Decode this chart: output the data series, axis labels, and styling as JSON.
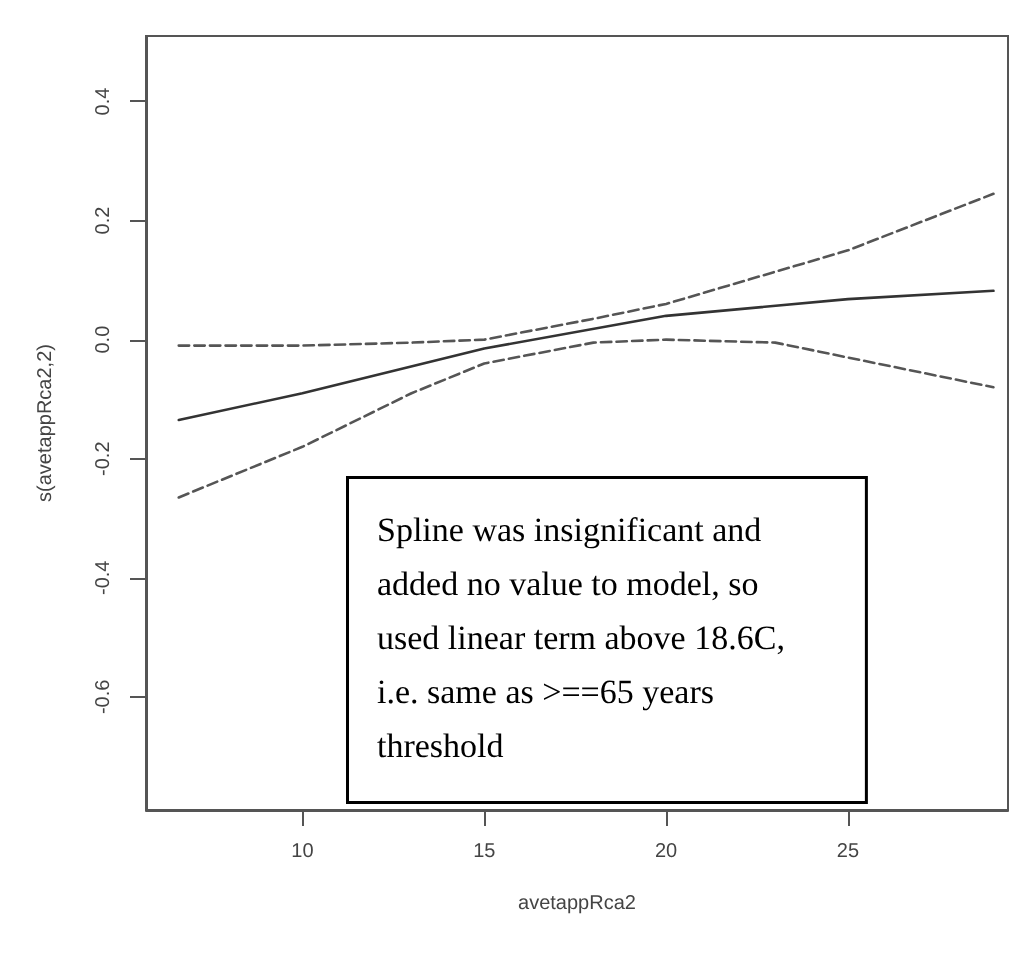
{
  "chart_data": {
    "type": "line",
    "xlabel": "avetappRca2",
    "ylabel": "s(avetappRca2,2)",
    "xlim": [
      5.7,
      29.4
    ],
    "ylim": [
      -0.79,
      0.51
    ],
    "xticks": [
      10,
      15,
      20,
      25
    ],
    "yticks": [
      -0.6,
      -0.4,
      -0.2,
      {
        "value": 0,
        "label": "0.0"
      },
      0.2,
      0.4
    ],
    "grid": false,
    "marker": "none",
    "series": [
      {
        "color": "#333333",
        "line_style": "solid",
        "x": [
          6.6,
          10,
          15,
          20,
          25,
          29
        ],
        "values": [
          -0.135,
          -0.09,
          -0.015,
          0.04,
          0.068,
          0.082
        ]
      },
      {
        "color": "#555555",
        "line_style": "dashed",
        "x": [
          6.6,
          10,
          13,
          15,
          18,
          20,
          25,
          29
        ],
        "values": [
          -0.01,
          -0.01,
          -0.005,
          0.0,
          0.035,
          0.06,
          0.15,
          0.245
        ]
      },
      {
        "color": "#555555",
        "line_style": "dashed",
        "x": [
          6.6,
          10,
          13,
          15,
          18,
          20,
          23,
          25,
          29
        ],
        "values": [
          -0.265,
          -0.18,
          -0.09,
          -0.04,
          -0.005,
          0.0,
          -0.005,
          -0.03,
          -0.08
        ]
      }
    ],
    "annotations": [
      "Spline was insignificant and\nadded no value to model, so\nused linear term above 18.6C,\ni.e. same as >==65 years\nthreshold"
    ]
  }
}
